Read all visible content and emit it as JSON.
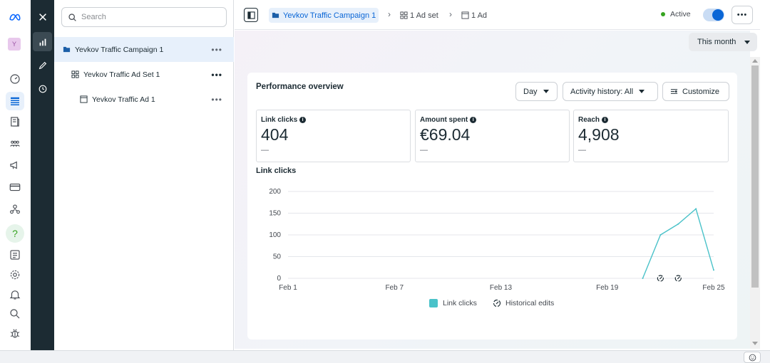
{
  "rail": {
    "logo": "meta-logo-icon",
    "avatar_letter": "Y",
    "icons": [
      "dashboard-icon",
      "campaigns-table-icon",
      "catalog-icon",
      "audiences-icon",
      "announcements-icon",
      "billing-icon",
      "business-settings-icon",
      "help-icon",
      "reports-icon",
      "settings-icon",
      "notifications-icon",
      "search-icon",
      "bug-report-icon"
    ]
  },
  "tools": [
    "close-icon",
    "analytics-icon",
    "edit-icon",
    "history-icon"
  ],
  "tree": {
    "search_placeholder": "Search",
    "items": [
      {
        "label": "Yevkov Traffic Campaign 1",
        "more": "•••"
      },
      {
        "label": "Yevkov Traffic Ad Set 1",
        "more": "•••"
      },
      {
        "label": "Yevkov Traffic Ad 1",
        "more": "•••"
      }
    ]
  },
  "topbar": {
    "campaign": "Yevkov Traffic Campaign 1",
    "adset": "1 Ad set",
    "ad": "1 Ad",
    "status": "Active",
    "more": "•••"
  },
  "range": "This month",
  "card": {
    "title": "Performance overview",
    "day_btn": "Day",
    "activity_btn": "Activity history: All",
    "customize_btn": "Customize",
    "metrics": [
      {
        "label": "Link clicks",
        "value": "404",
        "dash": "—"
      },
      {
        "label": "Amount spent",
        "value": "€69.04",
        "dash": "—"
      },
      {
        "label": "Reach",
        "value": "4,908",
        "dash": "—"
      }
    ],
    "chart_title": "Link clicks",
    "legend_clicks": "Link clicks",
    "legend_edits": "Historical edits"
  },
  "chart_data": {
    "type": "line",
    "title": "Link clicks",
    "x": [
      "Feb 21",
      "Feb 22",
      "Feb 23",
      "Feb 24",
      "Feb 25"
    ],
    "series": [
      {
        "name": "Link clicks",
        "values": [
          0,
          100,
          125,
          160,
          19
        ]
      }
    ],
    "x_tick_labels": [
      "Feb 1",
      "Feb 7",
      "Feb 13",
      "Feb 19",
      "Feb 25"
    ],
    "y_ticks": [
      0,
      50,
      100,
      150,
      200
    ],
    "ylim": [
      0,
      200
    ],
    "x_domain_days": [
      1,
      25
    ],
    "historical_edit_days": [
      22,
      23
    ],
    "grid": true,
    "legend_position": "bottom",
    "line_color": "#4ac2c9"
  }
}
